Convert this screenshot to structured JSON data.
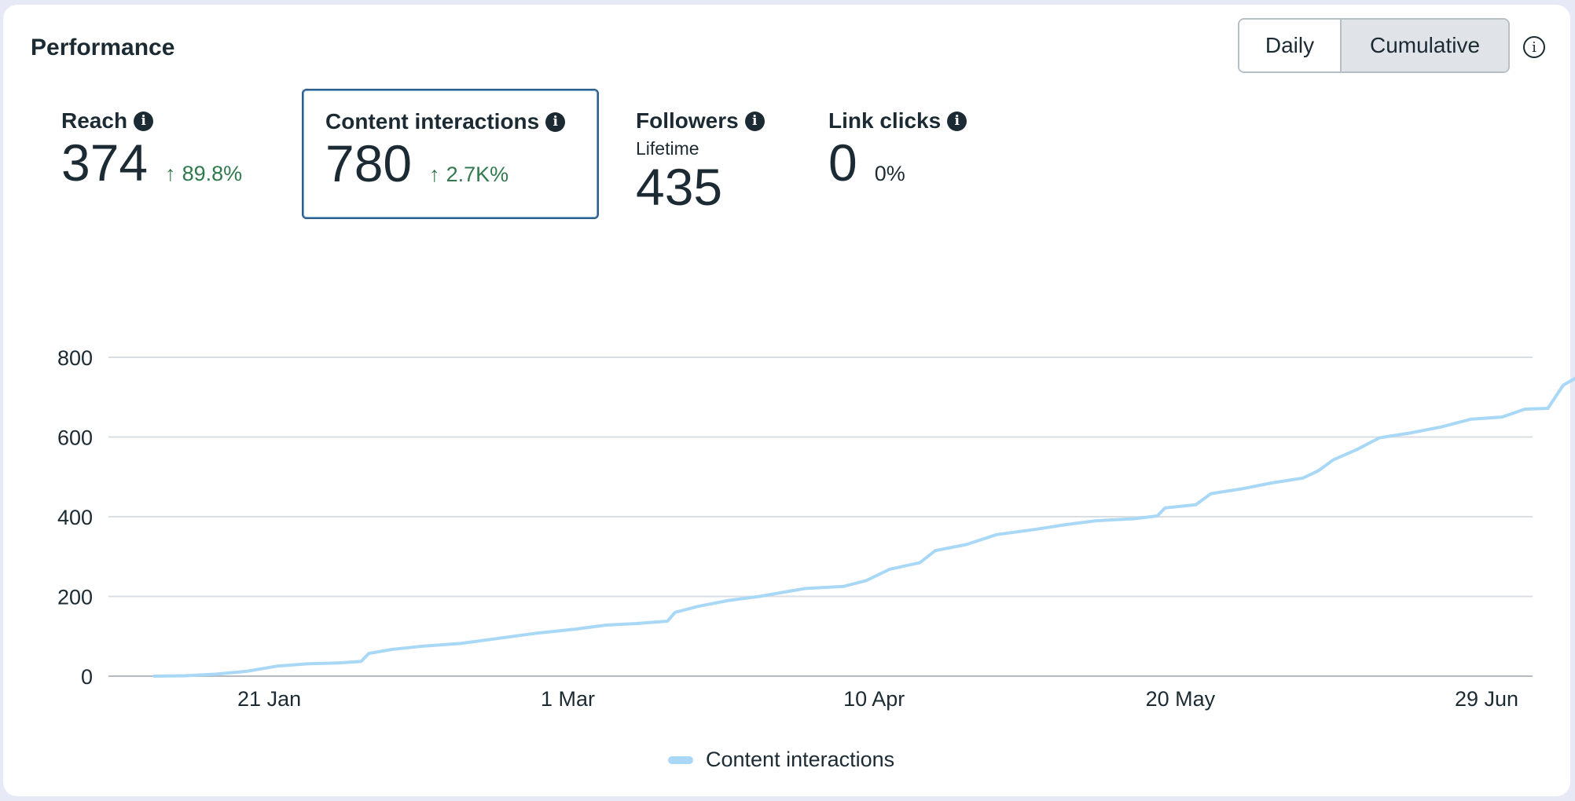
{
  "header": {
    "title": "Performance",
    "toggle": {
      "daily_label": "Daily",
      "cumulative_label": "Cumulative",
      "selected": "Cumulative"
    },
    "info_icon": "info-circle-icon"
  },
  "metrics": {
    "reach": {
      "label": "Reach",
      "value": "374",
      "arrow": "↑",
      "change": "89.8%"
    },
    "content_interactions": {
      "label": "Content interactions",
      "value": "780",
      "arrow": "↑",
      "change": "2.7K%"
    },
    "followers": {
      "label": "Followers",
      "sublabel": "Lifetime",
      "value": "435"
    },
    "link_clicks": {
      "label": "Link clicks",
      "value": "0",
      "change": "0%"
    }
  },
  "colors": {
    "line": "#a8d8f6",
    "positive": "#317a4d",
    "selected_border": "#2b5e8a",
    "grid": "#dadde1"
  },
  "chart_data": {
    "type": "line",
    "title": "",
    "xlabel": "",
    "ylabel": "",
    "ylim": [
      0,
      800
    ],
    "yticks": [
      0,
      200,
      400,
      600,
      800
    ],
    "xlim": [
      "2024-12-31",
      "2024-07-05"
    ],
    "xlim_note": "",
    "x_range": [
      "2024-12-31",
      "2025-07-05"
    ],
    "xticks": [
      {
        "date": "2025-01-21",
        "label": "21 Jan"
      },
      {
        "date": "2025-03-01",
        "label": "1 Mar"
      },
      {
        "date": "2025-04-10",
        "label": "10 Apr"
      },
      {
        "date": "2025-05-20",
        "label": "20 May"
      },
      {
        "date": "2025-06-29",
        "label": "29 Jun"
      }
    ],
    "grid": true,
    "legend_position": "bottom-center",
    "series": [
      {
        "name": "Content interactions",
        "color": "#a8d8f6",
        "points": [
          [
            "2025-01-06",
            0
          ],
          [
            "2025-01-10",
            1
          ],
          [
            "2025-01-14",
            5
          ],
          [
            "2025-01-18",
            12
          ],
          [
            "2025-01-22",
            25
          ],
          [
            "2025-01-26",
            31
          ],
          [
            "2025-01-30",
            33
          ],
          [
            "2025-02-02",
            37
          ],
          [
            "2025-02-03",
            57
          ],
          [
            "2025-02-06",
            67
          ],
          [
            "2025-02-10",
            75
          ],
          [
            "2025-02-15",
            82
          ],
          [
            "2025-02-20",
            95
          ],
          [
            "2025-02-25",
            108
          ],
          [
            "2025-03-02",
            118
          ],
          [
            "2025-03-06",
            128
          ],
          [
            "2025-03-10",
            132
          ],
          [
            "2025-03-14",
            138
          ],
          [
            "2025-03-15",
            160
          ],
          [
            "2025-03-18",
            175
          ],
          [
            "2025-03-22",
            190
          ],
          [
            "2025-03-26",
            200
          ],
          [
            "2025-04-01",
            220
          ],
          [
            "2025-04-06",
            225
          ],
          [
            "2025-04-09",
            240
          ],
          [
            "2025-04-12",
            268
          ],
          [
            "2025-04-16",
            285
          ],
          [
            "2025-04-18",
            315
          ],
          [
            "2025-04-22",
            330
          ],
          [
            "2025-04-26",
            355
          ],
          [
            "2025-05-01",
            368
          ],
          [
            "2025-05-05",
            380
          ],
          [
            "2025-05-09",
            390
          ],
          [
            "2025-05-14",
            395
          ],
          [
            "2025-05-17",
            402
          ],
          [
            "2025-05-18",
            422
          ],
          [
            "2025-05-22",
            430
          ],
          [
            "2025-05-24",
            458
          ],
          [
            "2025-05-28",
            470
          ],
          [
            "2025-06-01",
            485
          ],
          [
            "2025-06-05",
            497
          ],
          [
            "2025-06-07",
            515
          ],
          [
            "2025-06-09",
            543
          ],
          [
            "2025-06-12",
            568
          ],
          [
            "2025-06-15",
            598
          ],
          [
            "2025-06-19",
            610
          ],
          [
            "2025-06-23",
            625
          ],
          [
            "2025-06-27",
            645
          ],
          [
            "2025-07-01",
            650
          ],
          [
            "2025-07-04",
            670
          ],
          [
            "2025-07-07",
            672
          ],
          [
            "2025-07-09",
            730
          ],
          [
            "2025-07-11",
            752
          ],
          [
            "2025-07-13",
            770
          ],
          [
            "2025-07-14",
            780
          ]
        ]
      }
    ]
  }
}
